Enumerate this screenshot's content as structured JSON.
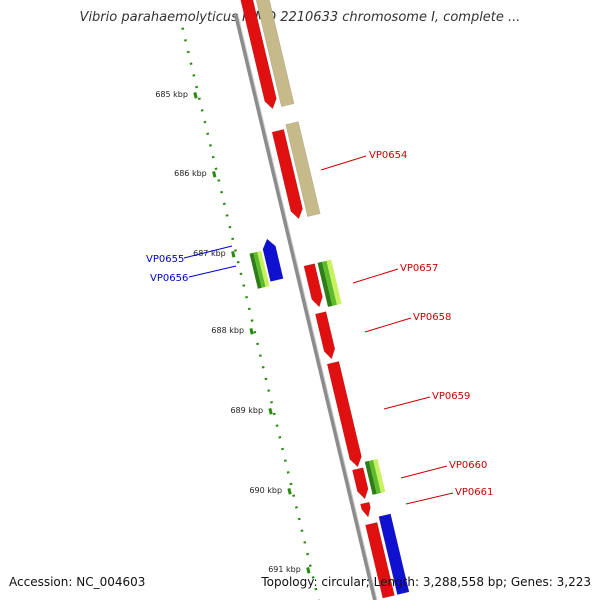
{
  "title": "Vibrio parahaemolyticus RIMD 2210633 chromosome I, complete ...",
  "footer": {
    "accession": "Accession: NC_004603",
    "summary": "Topology: circular; Length: 3,288,558 bp; Genes: 3,223"
  },
  "colors": {
    "forward_gene": "#e01010",
    "reverse_gene": "#1010d0",
    "rna_gene": "#3a9a20",
    "pseudo_gene": "#c6b98a",
    "scale_dots": "#2a8a10",
    "backbone": "#8c8c8c",
    "label_forward": "#cc0000",
    "label_reverse": "#0000cc"
  },
  "scale_ticks": [
    {
      "label": "685 kbp"
    },
    {
      "label": "686 kbp"
    },
    {
      "label": "687 kbp"
    },
    {
      "label": "688 kbp"
    },
    {
      "label": "689 kbp"
    },
    {
      "label": "690 kbp"
    },
    {
      "label": "691 kbp"
    }
  ],
  "gene_labels": [
    {
      "name": "VP0654",
      "strand": "forward"
    },
    {
      "name": "VP0655",
      "strand": "reverse"
    },
    {
      "name": "VP0656",
      "strand": "reverse"
    },
    {
      "name": "VP0657",
      "strand": "forward"
    },
    {
      "name": "VP0658",
      "strand": "forward"
    },
    {
      "name": "VP0659",
      "strand": "forward"
    },
    {
      "name": "VP0660",
      "strand": "forward"
    },
    {
      "name": "VP0661",
      "strand": "forward"
    }
  ]
}
